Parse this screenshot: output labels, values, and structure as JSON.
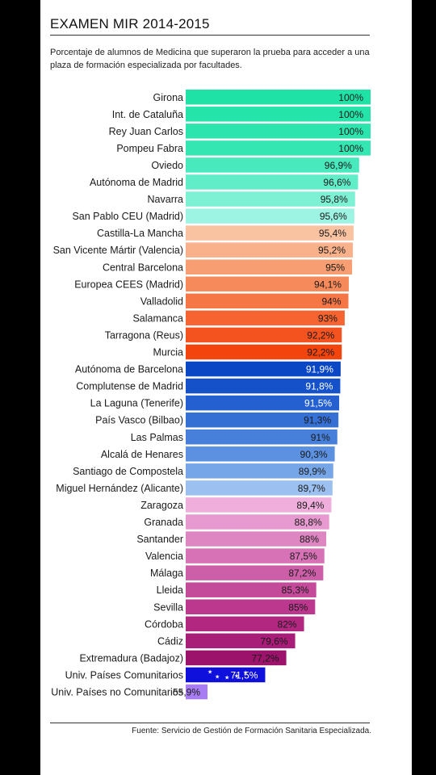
{
  "header": {
    "title": "EXAMEN MIR 2014-2015",
    "subtitle": "Porcentaje de alumnos de Medicina que superaron la prueba para acceder a una plaza de formación especializada por facultades."
  },
  "footer": {
    "source": "Fuente: Servicio de Gestión de Formación Sanitaria Especializada."
  },
  "chart_data": {
    "type": "bar",
    "orientation": "horizontal",
    "title": "EXAMEN MIR 2014-2015",
    "xlabel": "",
    "ylabel": "",
    "xlim": [
      0,
      100
    ],
    "grid": false,
    "legend": "none",
    "categories": [
      "Girona",
      "Int. de Cataluña",
      "Rey Juan Carlos",
      "Pompeu Fabra",
      "Oviedo",
      "Autónoma de Madrid",
      "Navarra",
      "San Pablo CEU (Madrid)",
      "Castilla-La Mancha",
      "San Vicente Mártir (Valencia)",
      "Central Barcelona",
      "Europea CEES (Madrid)",
      "Valladolid",
      "Salamanca",
      "Tarragona (Reus)",
      "Murcia",
      "Autónoma de Barcelona",
      "Complutense de Madrid",
      "La Laguna (Tenerife)",
      "País Vasco (Bilbao)",
      "Las Palmas",
      "Alcalá de Henares",
      "Santiago de Compostela",
      "Miguel Hernández (Alicante)",
      "Zaragoza",
      "Granada",
      "Santander",
      "Valencia",
      "Málaga",
      "Lleida",
      "Sevilla",
      "Córdoba",
      "Cádiz",
      "Extremadura (Badajoz)",
      "Univ. Países Comunitarios",
      "Univ. Países no Comunitarios"
    ],
    "values": [
      100,
      100,
      100,
      100,
      96.9,
      96.6,
      95.8,
      95.6,
      95.4,
      95.2,
      95,
      94.1,
      94,
      93,
      92.2,
      92.2,
      91.9,
      91.8,
      91.5,
      91.3,
      91,
      90.3,
      89.9,
      89.7,
      89.4,
      88.8,
      88,
      87.5,
      87.2,
      85.3,
      85,
      82,
      79.6,
      77.2,
      71.5,
      55.9
    ],
    "value_labels": [
      "100%",
      "100%",
      "100%",
      "100%",
      "96,9%",
      "96,6%",
      "95,8%",
      "95,6%",
      "95,4%",
      "95,2%",
      "95%",
      "94,1%",
      "94%",
      "93%",
      "92,2%",
      "92,2%",
      "91,9%",
      "91,8%",
      "91,5%",
      "91,3%",
      "91%",
      "90,3%",
      "89,9%",
      "89,7%",
      "89,4%",
      "88,8%",
      "88%",
      "87,5%",
      "87,2%",
      "85,3%",
      "85%",
      "82%",
      "79,6%",
      "77,2%",
      "71,5%",
      "55,9%"
    ],
    "colors": [
      "#1fe3a6",
      "#25e4aa",
      "#2ce5ae",
      "#33e6b2",
      "#48e9bd",
      "#62edc9",
      "#7ef0d4",
      "#9ef4e2",
      "#f9c3a2",
      "#f8b18a",
      "#f79e72",
      "#f78a5b",
      "#f67746",
      "#f56431",
      "#f4521e",
      "#f3440d",
      "#0a47c4",
      "#1552c9",
      "#2460cf",
      "#3570d5",
      "#4780da",
      "#5b91e0",
      "#76a6e7",
      "#9cc0ef",
      "#efaedc",
      "#e69acf",
      "#de86c2",
      "#d672b5",
      "#cd5ea8",
      "#c44a9a",
      "#bc388e",
      "#b22881",
      "#a81d77",
      "#9c136c",
      "#1010dd",
      "#a87cf2"
    ]
  }
}
